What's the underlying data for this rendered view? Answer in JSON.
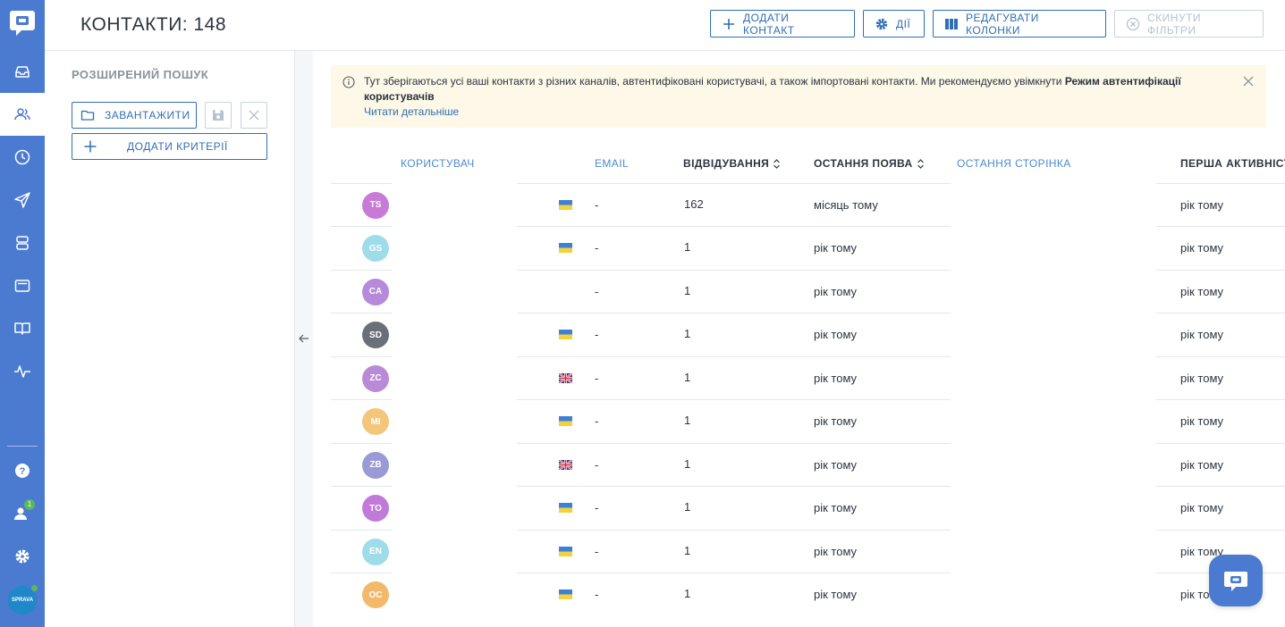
{
  "header": {
    "title": "КОНТАКТИ:",
    "count": "148",
    "buttons": {
      "add_contact": "ДОДАТИ КОНТАКТ",
      "actions": "ДІЇ",
      "edit_columns": "РЕДАГУВАТИ КОЛОНКИ",
      "reset_filters": "СКИНУТИ ФІЛЬТРИ"
    }
  },
  "sidebar": {
    "items": [
      {
        "icon": "inbox-icon"
      },
      {
        "icon": "contacts-icon",
        "active": true
      },
      {
        "icon": "clock-icon"
      },
      {
        "icon": "send-icon"
      },
      {
        "icon": "database-icon"
      },
      {
        "icon": "wallet-icon"
      },
      {
        "icon": "book-icon"
      },
      {
        "icon": "activity-icon"
      }
    ],
    "bottom": {
      "help_icon": "help-icon",
      "team_badge": "1",
      "settings_icon": "gear-icon",
      "avatar_text": "SPRAVA"
    }
  },
  "search_panel": {
    "title": "РОЗШИРЕНИЙ ПОШУК",
    "load_label": "ЗАВАНТАЖИТИ",
    "add_criteria_label": "ДОДАТИ КРИТЕРІЇ"
  },
  "notice": {
    "text_plain": "Тут зберігаються усі ваші контакти з різних каналів, автентифіковані користувачі, а також імпортовані контакти. Ми рекомендуємо увімкнути ",
    "text_bold": "Режим автентифікації користувачів",
    "link": "Читати детальніше"
  },
  "table": {
    "columns": {
      "user": "КОРИСТУВАЧ",
      "email": "EMAIL",
      "visits": "ВІДВІДУВАННЯ",
      "last_seen": "ОСТАННЯ ПОЯВА",
      "last_page": "ОСТАННЯ СТОРІНКА",
      "first_activity": "ПЕРША АКТИВНІСТЬ"
    },
    "rows": [
      {
        "initials": "TS",
        "color": "#c77ad6",
        "flag": "ua",
        "email": "-",
        "visits": "162",
        "last_seen": "місяць тому",
        "first_activity": "рік тому"
      },
      {
        "initials": "GS",
        "color": "#9fdcea",
        "flag": "ua",
        "email": "-",
        "visits": "1",
        "last_seen": "рік тому",
        "first_activity": "рік тому"
      },
      {
        "initials": "CA",
        "color": "#b58ad9",
        "flag": "",
        "email": "-",
        "visits": "1",
        "last_seen": "рік тому",
        "first_activity": "рік тому"
      },
      {
        "initials": "SD",
        "color": "#6b7078",
        "flag": "ua",
        "email": "-",
        "visits": "1",
        "last_seen": "рік тому",
        "first_activity": "рік тому"
      },
      {
        "initials": "ZC",
        "color": "#b98ad8",
        "flag": "gb",
        "email": "-",
        "visits": "1",
        "last_seen": "рік тому",
        "first_activity": "рік тому"
      },
      {
        "initials": "MI",
        "color": "#f3c67a",
        "flag": "ua",
        "email": "-",
        "visits": "1",
        "last_seen": "рік тому",
        "first_activity": "рік тому"
      },
      {
        "initials": "ZB",
        "color": "#9a9ad6",
        "flag": "gb",
        "email": "-",
        "visits": "1",
        "last_seen": "рік тому",
        "first_activity": "рік тому"
      },
      {
        "initials": "TO",
        "color": "#c07ad8",
        "flag": "ua",
        "email": "-",
        "visits": "1",
        "last_seen": "рік тому",
        "first_activity": "рік тому"
      },
      {
        "initials": "EN",
        "color": "#9fdcea",
        "flag": "ua",
        "email": "-",
        "visits": "1",
        "last_seen": "рік тому",
        "first_activity": "рік тому"
      },
      {
        "initials": "OC",
        "color": "#f3b96a",
        "flag": "ua",
        "email": "-",
        "visits": "1",
        "last_seen": "рік тому",
        "first_activity": "рік то"
      }
    ]
  }
}
